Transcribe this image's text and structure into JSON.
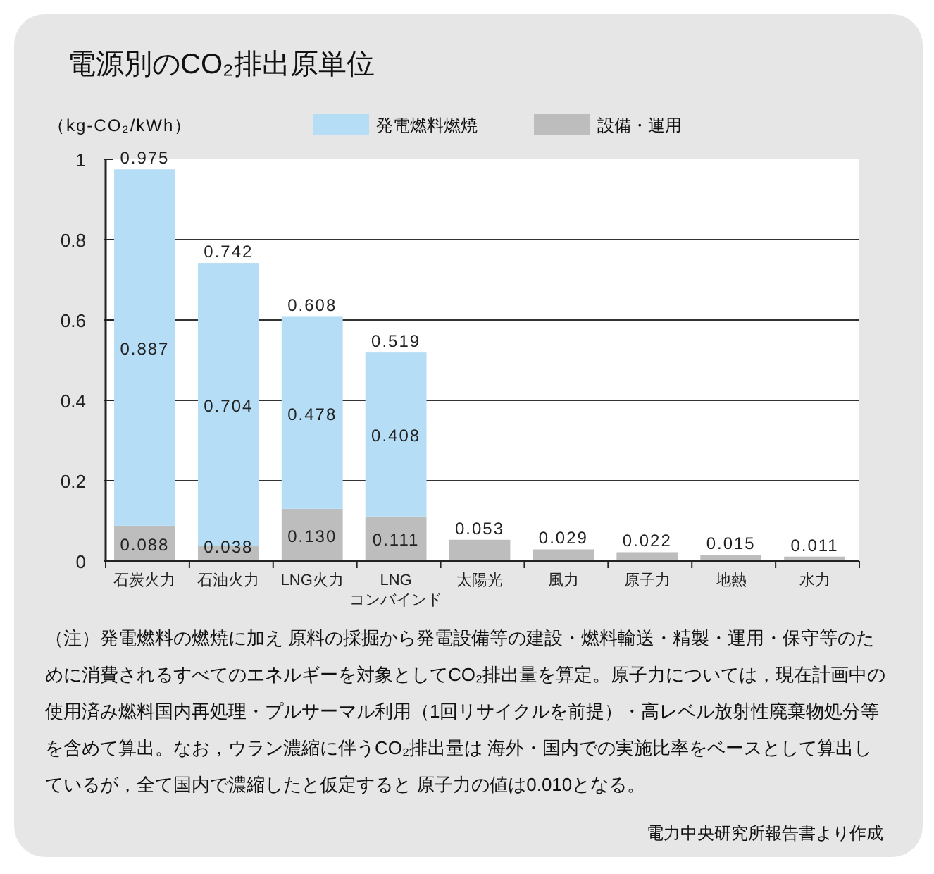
{
  "chart_data": {
    "type": "bar",
    "title": "電源別のCO₂排出原単位",
    "ylabel": "（kg-CO₂/kWh）",
    "categories": [
      "石炭火力",
      "石油火力",
      "LNG火力",
      "LNG\nコンバインド",
      "太陽光",
      "風力",
      "原子力",
      "地熱",
      "水力"
    ],
    "stacked": true,
    "series": [
      {
        "name": "設備・運用",
        "color": "#bdbdbd",
        "values": [
          0.088,
          0.038,
          0.13,
          0.111,
          0.053,
          0.029,
          0.022,
          0.015,
          0.011
        ],
        "value_labels": [
          "0.088",
          "0.038",
          "0.130",
          "0.111",
          "0.053",
          "0.029",
          "0.022",
          "0.015",
          "0.011"
        ]
      },
      {
        "name": "発電燃料燃焼",
        "color": "#b5ddf5",
        "values": [
          0.887,
          0.704,
          0.478,
          0.408,
          null,
          null,
          null,
          null,
          null
        ],
        "value_labels": [
          "0.887",
          "0.704",
          "0.478",
          "0.408",
          null,
          null,
          null,
          null,
          null
        ]
      }
    ],
    "totals": [
      "0.975",
      "0.742",
      "0.608",
      "0.519",
      null,
      null,
      null,
      null,
      null
    ],
    "ylim": [
      0,
      1
    ],
    "yticks": [
      0,
      0.2,
      0.4,
      0.6,
      0.8,
      1
    ],
    "grid": "y",
    "legend": "top",
    "annotations": [
      "（注）発電燃料の燃焼に加え 原料の採掘から発電設備等の建設・燃料輸送・精製・運用・保守等のために消費されるすべてのエネルギーを対象としてCO₂排出量を算定。原子力については，現在計画中の使用済み燃料国内再処理・プルサーマル利用（1回リサイクルを前提）・高レベル放射性廃棄物処分等を含めて算出。なお，ウラン濃縮に伴うCO₂排出量は 海外・国内での実施比率をベースとして算出しているが，全て国内で濃縮したと仮定すると 原子力の値は0.010となる。",
      "電力中央研究所報告書より作成"
    ]
  }
}
